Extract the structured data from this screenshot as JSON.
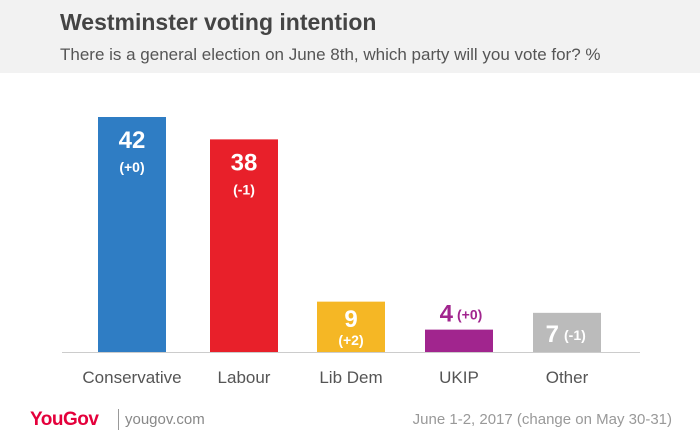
{
  "header": {
    "title": "Westminster voting intention",
    "subtitle": "There is a general election on June 8th, which party will you vote for? %"
  },
  "chart_data": {
    "type": "bar",
    "categories": [
      "Conservative",
      "Labour",
      "Lib Dem",
      "UKIP",
      "Other"
    ],
    "values": [
      42,
      38,
      9,
      4,
      7
    ],
    "changes": [
      "(+0)",
      "(-1)",
      "(+2)",
      "(+0)",
      "(-1)"
    ],
    "colors": [
      "#2f7dc4",
      "#e8202a",
      "#f5b725",
      "#a1258e",
      "#bbbbbb"
    ],
    "ylim": [
      0,
      42
    ],
    "grid": false,
    "legend": "none"
  },
  "footer": {
    "brand": "YouGov",
    "site": "yougov.com",
    "note": "June 1-2, 2017 (change on May 30-31)"
  }
}
